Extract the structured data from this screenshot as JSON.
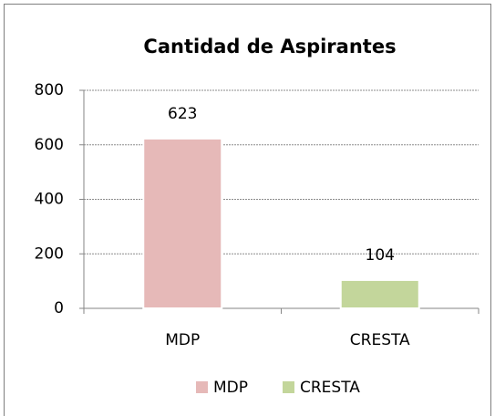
{
  "chart_data": {
    "type": "bar",
    "title": "Cantidad de Aspirantes",
    "categories": [
      "MDP",
      "CRESTA"
    ],
    "values": [
      623,
      104
    ],
    "colors": [
      "#e6b9b8",
      "#c3d69b"
    ],
    "ylim": [
      0,
      800
    ],
    "yticks": [
      0,
      200,
      400,
      600,
      800
    ],
    "grid": true,
    "legend": "bottom"
  }
}
